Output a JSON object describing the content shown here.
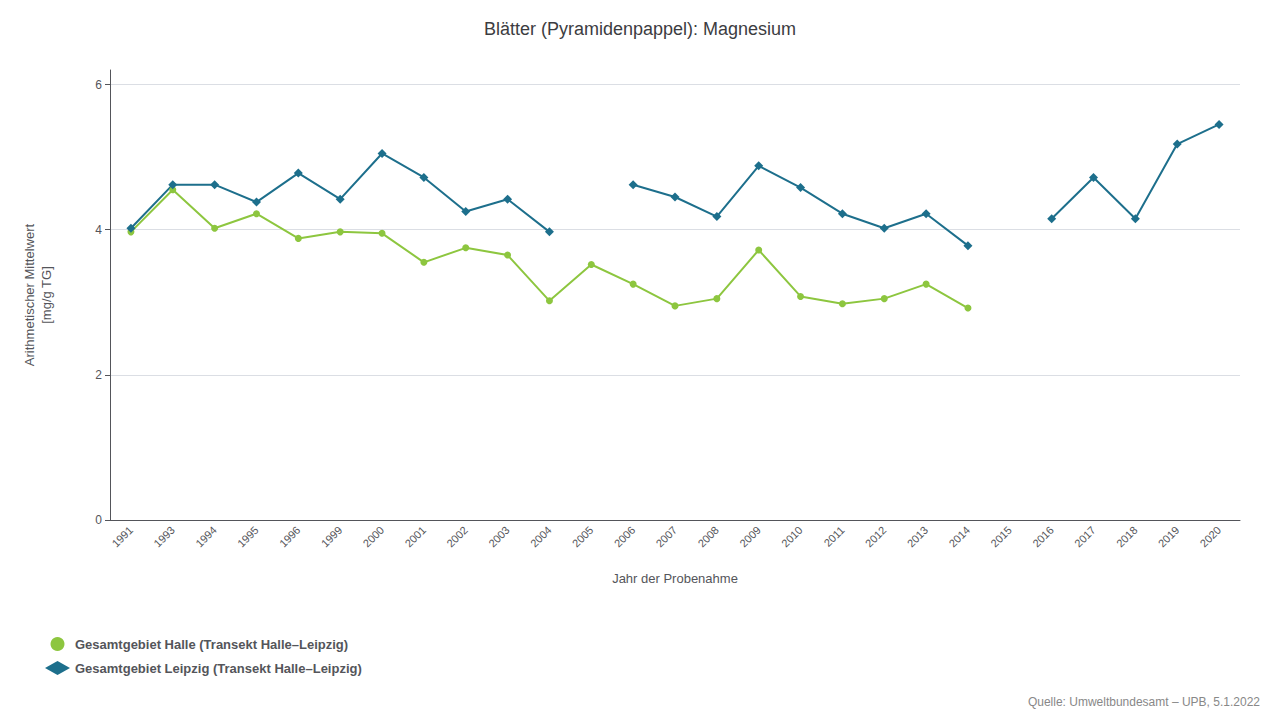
{
  "chart_data": {
    "type": "line",
    "title": "Blätter (Pyramidenpappel): Magnesium",
    "xlabel": "Jahr der Probenahme",
    "ylabel": "Arithmetischer Mittelwert\n[mg/g TG]",
    "annotation": "Quelle: Umweltbundesamt – UPB, 5.1.2022",
    "categories": [
      "1991",
      "1993",
      "1994",
      "1995",
      "1996",
      "1999",
      "2000",
      "2001",
      "2002",
      "2003",
      "2004",
      "2005",
      "2006",
      "2007",
      "2008",
      "2009",
      "2010",
      "2011",
      "2012",
      "2013",
      "2014",
      "2015",
      "2016",
      "2017",
      "2018",
      "2019",
      "2020"
    ],
    "series": [
      {
        "name": "Gesamtgebiet Halle (Transekt Halle–Leipzig)",
        "color": "#8dc63f",
        "marker": "circle",
        "values": [
          3.97,
          4.55,
          4.02,
          4.22,
          3.88,
          3.97,
          3.95,
          3.55,
          3.75,
          3.65,
          3.02,
          3.52,
          3.25,
          2.95,
          3.05,
          3.72,
          3.08,
          2.98,
          3.05,
          3.25,
          2.92,
          null,
          null,
          null,
          null,
          null,
          null
        ]
      },
      {
        "name": "Gesamtgebiet Leipzig (Transekt Halle–Leipzig)",
        "color": "#1d6f8c",
        "marker": "diamond",
        "values": [
          4.02,
          4.62,
          4.62,
          4.38,
          4.78,
          4.42,
          5.05,
          4.72,
          4.25,
          4.42,
          3.97,
          null,
          4.62,
          4.45,
          4.18,
          4.88,
          4.58,
          4.22,
          4.02,
          4.22,
          3.78,
          null,
          4.15,
          4.72,
          4.15,
          5.18,
          5.45
        ]
      }
    ],
    "ylim": [
      0,
      6.2
    ],
    "yticks": [
      0,
      2,
      4,
      6
    ],
    "grid": true,
    "legend": "lower left"
  }
}
